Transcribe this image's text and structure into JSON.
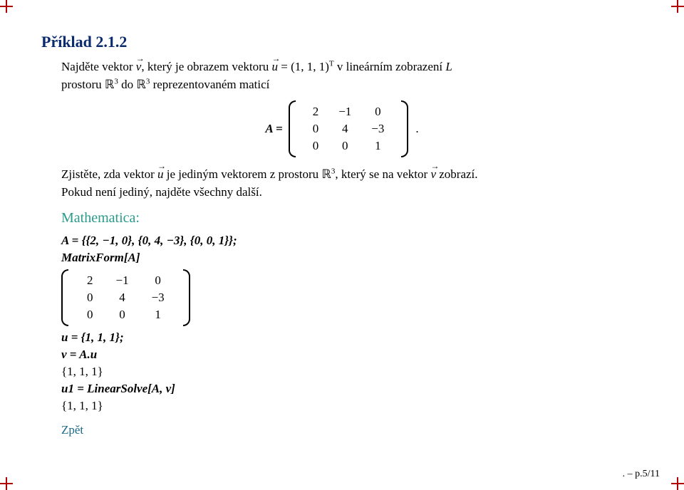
{
  "title": "Příklad 2.1.2",
  "para1_a": "Najděte vektor ",
  "vec_v": "v",
  "para1_b": ", který je obrazem vektoru ",
  "vec_u": "u",
  "para1_c": " = (1, 1, 1)",
  "supT": "T",
  "para1_d": " v lineárním zobrazení ",
  "L": "L",
  "para1_e": "prostoru ℝ",
  "sup3a": "3",
  "para1_f": " do ℝ",
  "sup3b": "3",
  "para1_g": " reprezentovaném maticí",
  "eqA": "A =",
  "matA": {
    "rows": [
      [
        "2",
        "−1",
        "0"
      ],
      [
        "0",
        "4",
        "−3"
      ],
      [
        "0",
        "0",
        "1"
      ]
    ]
  },
  "period": ".",
  "para2_a": "Zjistěte, zda vektor ",
  "para2_b": " je jediným vektorem z prostoru ℝ",
  "sup3c": "3",
  "para2_c": ", který se na vektor ",
  "para2_d": " zobrazí.",
  "para3": "Pokud není jediný, najděte všechny další.",
  "mathematica": "Mathematica:",
  "code1": "A = {{2, −1, 0}, {0, 4, −3}, {0, 0, 1}};",
  "code2": "MatrixForm[A]",
  "matOut": {
    "rows": [
      [
        "2",
        "−1",
        "0"
      ],
      [
        "0",
        "4",
        "−3"
      ],
      [
        "0",
        "0",
        "1"
      ]
    ]
  },
  "code3": "u = {1, 1, 1};",
  "code4": "v = A.u",
  "out1": "{1, 1, 1}",
  "code5": "u1 = LinearSolve[A, v]",
  "out2": "{1, 1, 1}",
  "back": "Zpět",
  "pageno": ".  – p.5/11",
  "colors": {
    "title": "#0a2a6e",
    "mathematica": "#2a9a8a",
    "link": "#1a6a8a",
    "crop": "#b00000"
  }
}
